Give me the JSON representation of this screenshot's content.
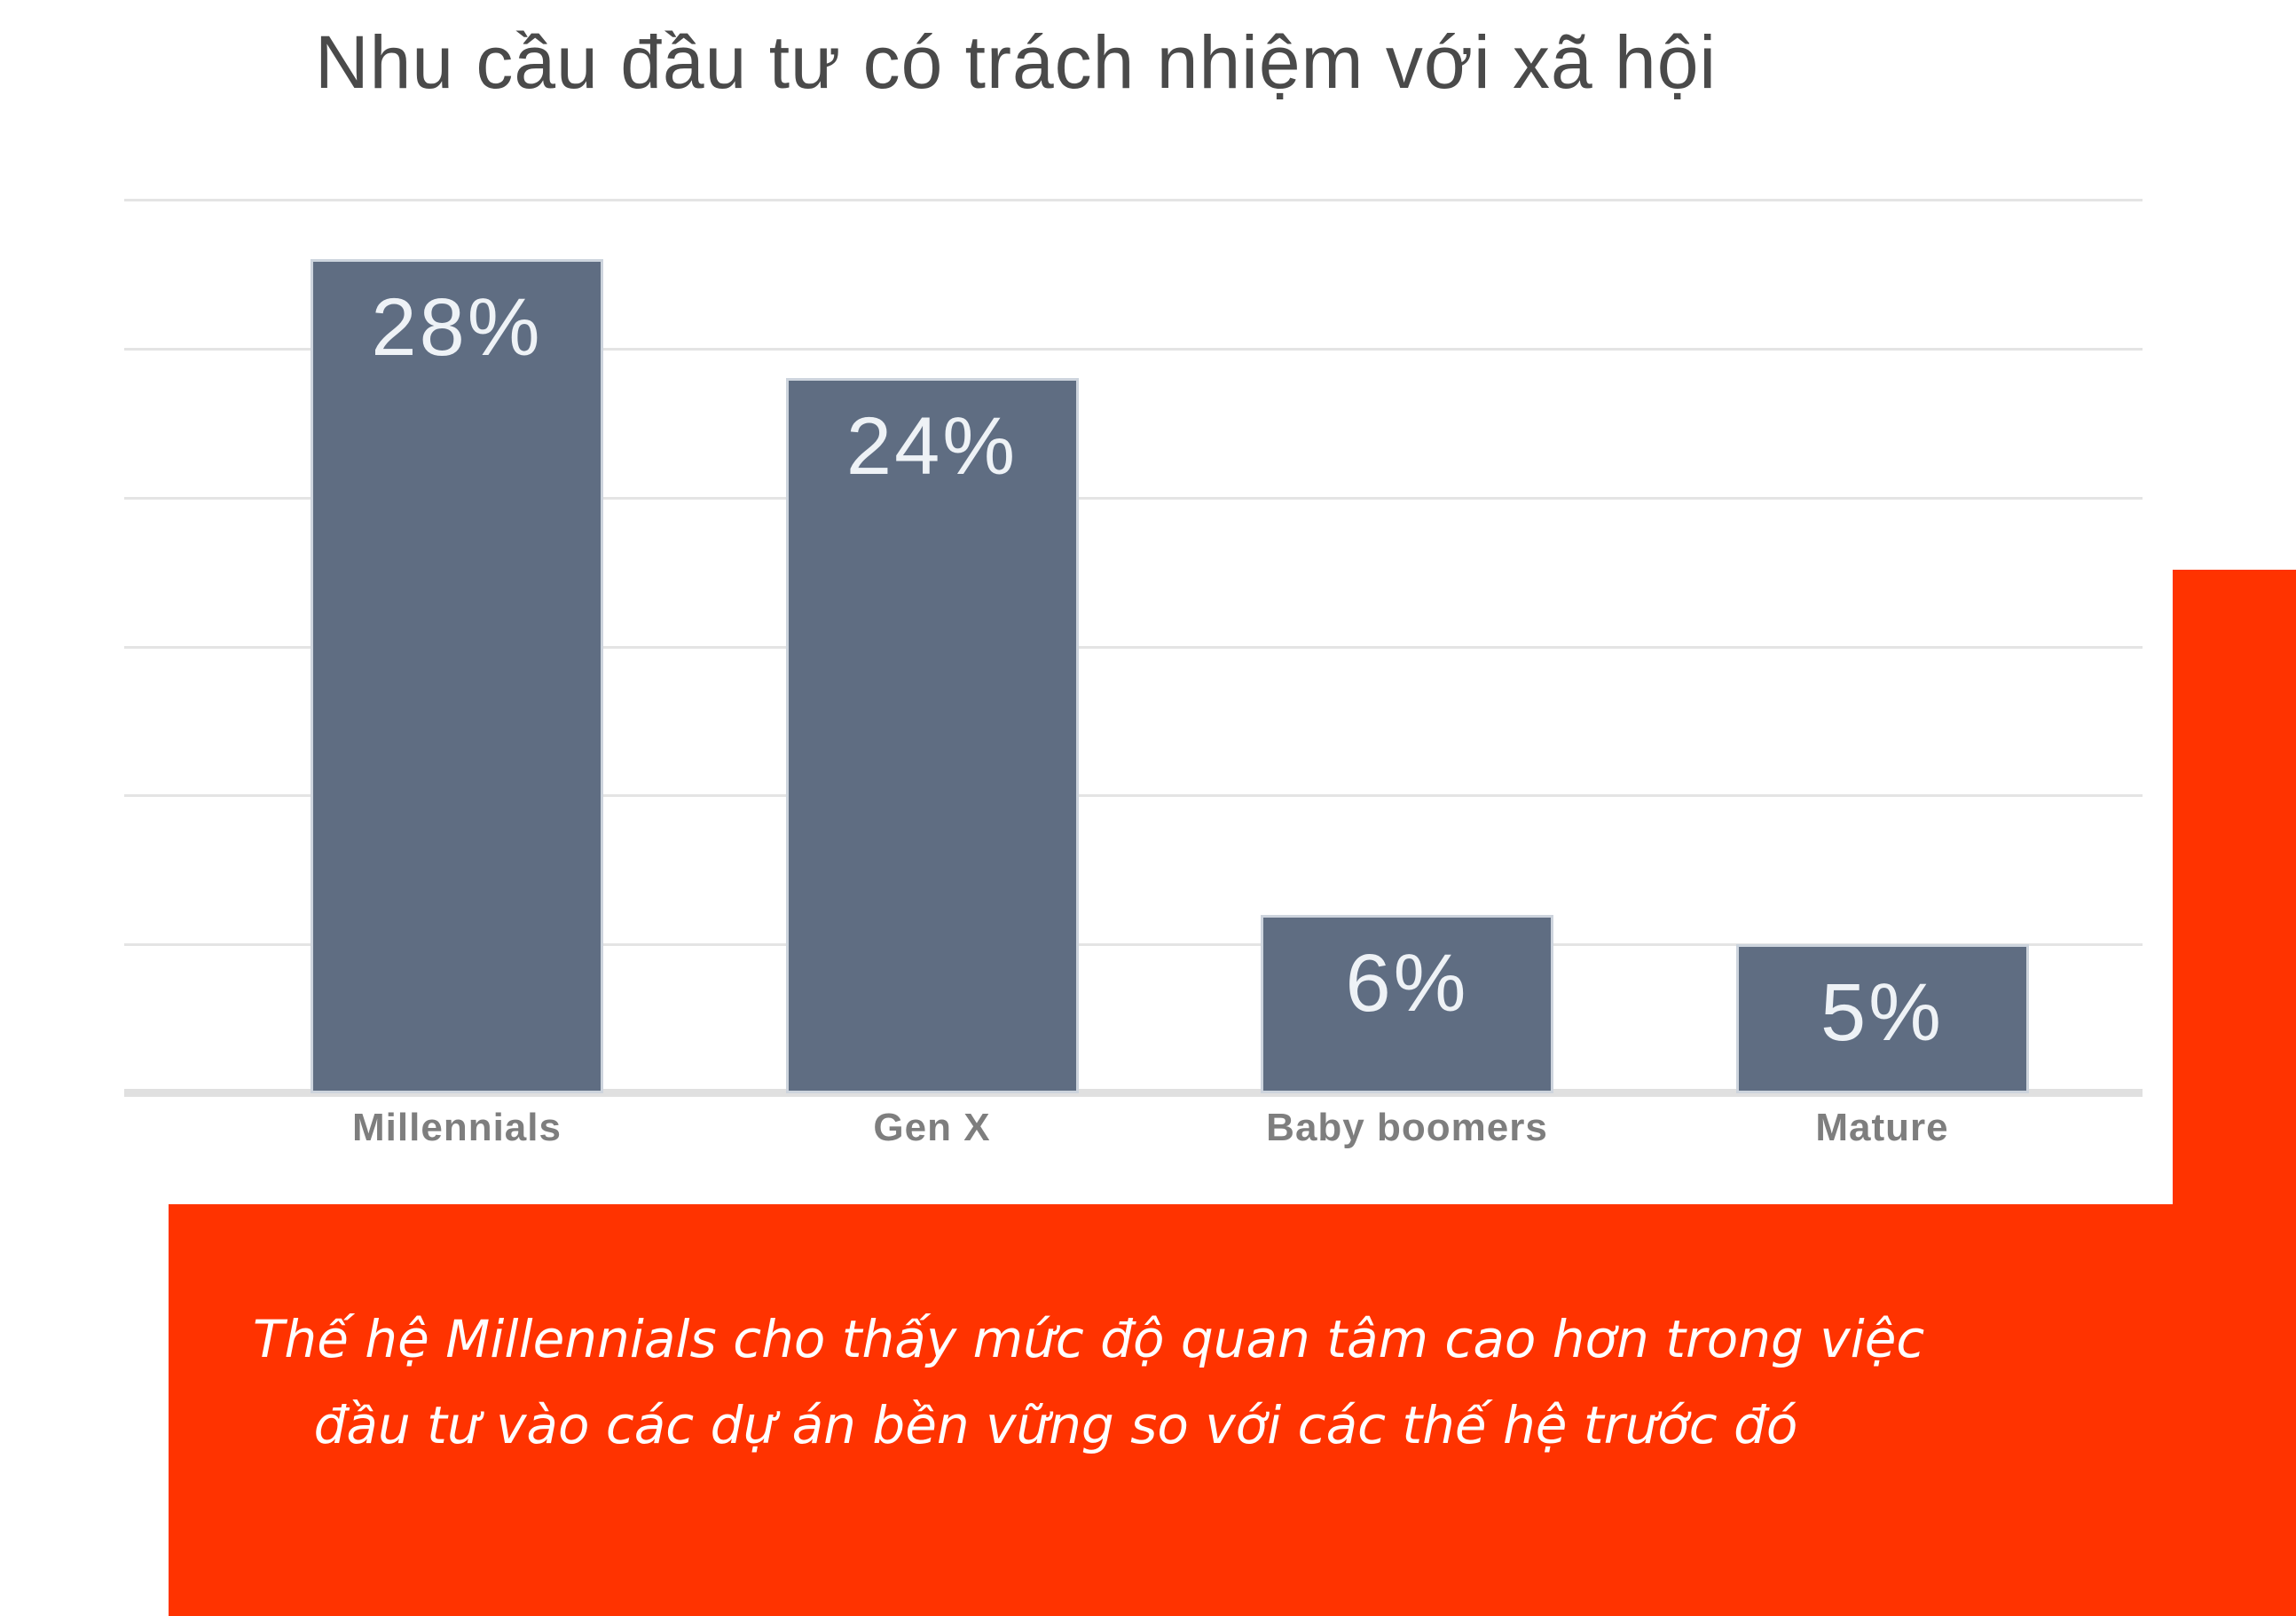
{
  "title": "Nhu cầu đầu tư có trách nhiệm với xã hội",
  "chart_data": {
    "type": "bar",
    "title": "Nhu cầu đầu tư có trách nhiệm với xã hội",
    "categories": [
      "Millennials",
      "Gen X",
      "Baby boomers",
      "Mature"
    ],
    "values": [
      28,
      24,
      6,
      5
    ],
    "value_labels": [
      "28%",
      "24%",
      "6%",
      "5%"
    ],
    "unit": "%",
    "ylim": [
      0,
      30
    ],
    "gridline_step": 5,
    "grid": true,
    "y_tick_labels_visible": false,
    "legend": false,
    "bar_color": "#5f6d82",
    "bar_border_color": "#cdd4dd",
    "value_label_color": "#eef2f6",
    "category_label_color": "#7e7e7e",
    "gridline_color": "#e4e4e4",
    "axis_line_color": "#e0e0e0"
  },
  "callout": {
    "line1": "Thế hệ Millennials cho thấy mức độ quan tâm cao hơn trong việc",
    "line2": "đầu tư vào các dự án bền vững so với các thế hệ trước đó",
    "background_color": "#ff3300",
    "text_color": "#ffffff"
  },
  "accent_strip": {
    "color": "#ff3300"
  }
}
